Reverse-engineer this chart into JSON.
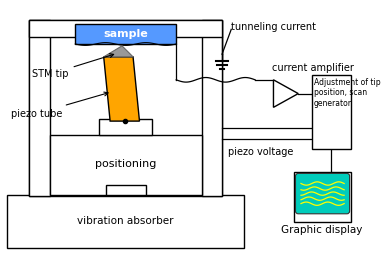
{
  "bg_color": "#ffffff",
  "fig_width": 3.86,
  "fig_height": 2.67,
  "dpi": 100,
  "colors": {
    "black": "#000000",
    "orange": "#FFA500",
    "blue_sample": "#5599FF",
    "cyan_display": "#00CCBB",
    "gray_tip": "#999999",
    "white": "#ffffff"
  },
  "labels": {
    "sample": "sample",
    "stm_tip": "STM tip",
    "piezo_tube": "piezo tube",
    "positioning": "positioning",
    "vib_absorber": "vibration absorber",
    "tunneling_current": "tunneling current",
    "current_amplifier": "current amplifier",
    "piezo_voltage": "piezo voltage",
    "adjustment": "Adjustment of tip\nposition, scan\ngenerator",
    "graphic_display": "Graphic display"
  }
}
